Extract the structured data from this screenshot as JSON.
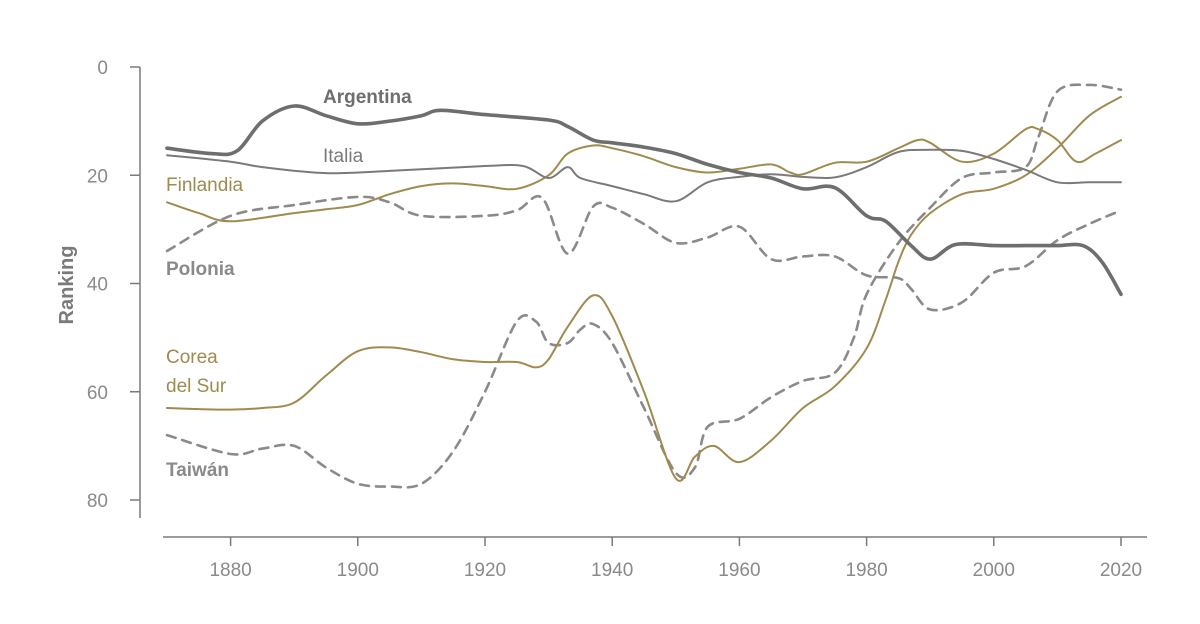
{
  "chart_data": {
    "type": "line",
    "title": "",
    "xlabel": "",
    "ylabel": "Ranking",
    "xlim": [
      1870,
      2024
    ],
    "ylim": [
      0,
      80
    ],
    "y_inverted": true,
    "x_ticks": [
      1880,
      1900,
      1920,
      1940,
      1960,
      1980,
      2000,
      2020
    ],
    "y_ticks": [
      0,
      20,
      40,
      60,
      80
    ],
    "grid": false,
    "series": [
      {
        "name": "Argentina",
        "color": "#6e6e6e",
        "style": "bold",
        "label_lines": [
          "Argentina"
        ],
        "points": [
          [
            1870,
            15
          ],
          [
            1877,
            16
          ],
          [
            1881,
            15.5
          ],
          [
            1885,
            10
          ],
          [
            1890,
            7.2
          ],
          [
            1895,
            9
          ],
          [
            1900,
            10.5
          ],
          [
            1905,
            10
          ],
          [
            1910,
            9
          ],
          [
            1913,
            8
          ],
          [
            1920,
            8.8
          ],
          [
            1930,
            9.8
          ],
          [
            1933,
            11
          ],
          [
            1937,
            13.5
          ],
          [
            1940,
            14
          ],
          [
            1945,
            14.8
          ],
          [
            1950,
            16
          ],
          [
            1955,
            18
          ],
          [
            1960,
            19.5
          ],
          [
            1965,
            20.5
          ],
          [
            1970,
            22.5
          ],
          [
            1975,
            22.3
          ],
          [
            1980,
            27.5
          ],
          [
            1983,
            28.5
          ],
          [
            1987,
            33
          ],
          [
            1990,
            35.5
          ],
          [
            1994,
            32.8
          ],
          [
            2000,
            33
          ],
          [
            2005,
            33
          ],
          [
            2010,
            33
          ],
          [
            2014,
            33
          ],
          [
            2017,
            36
          ],
          [
            2020,
            42
          ]
        ]
      },
      {
        "name": "Italia",
        "color": "#7a7a7a",
        "style": "thin",
        "label_lines": [
          "Italia"
        ],
        "points": [
          [
            1870,
            16.3
          ],
          [
            1880,
            17.5
          ],
          [
            1885,
            18.5
          ],
          [
            1895,
            19.6
          ],
          [
            1905,
            19.2
          ],
          [
            1920,
            18.3
          ],
          [
            1926,
            18.3
          ],
          [
            1930,
            20.5
          ],
          [
            1933,
            18.5
          ],
          [
            1935,
            20.5
          ],
          [
            1940,
            22
          ],
          [
            1945,
            23.5
          ],
          [
            1950,
            24.8
          ],
          [
            1955,
            21.3
          ],
          [
            1960,
            20.3
          ],
          [
            1965,
            19.8
          ],
          [
            1970,
            20.3
          ],
          [
            1975,
            20.4
          ],
          [
            1980,
            18.5
          ],
          [
            1985,
            15.7
          ],
          [
            1990,
            15.3
          ],
          [
            1995,
            15.5
          ],
          [
            2000,
            17
          ],
          [
            2005,
            19
          ],
          [
            2010,
            21.3
          ],
          [
            2015,
            21.3
          ],
          [
            2020,
            21.3
          ]
        ]
      },
      {
        "name": "Finlandia",
        "color": "#a08a4e",
        "style": "thin",
        "label_lines": [
          "Finlandia"
        ],
        "points": [
          [
            1870,
            25
          ],
          [
            1875,
            27
          ],
          [
            1880,
            28.5
          ],
          [
            1890,
            27
          ],
          [
            1895,
            26.3
          ],
          [
            1900,
            25.5
          ],
          [
            1905,
            23.5
          ],
          [
            1910,
            22
          ],
          [
            1915,
            21.5
          ],
          [
            1920,
            22
          ],
          [
            1925,
            22.5
          ],
          [
            1930,
            20
          ],
          [
            1933,
            16
          ],
          [
            1937,
            14.5
          ],
          [
            1940,
            15
          ],
          [
            1945,
            16.5
          ],
          [
            1950,
            18.5
          ],
          [
            1955,
            19.5
          ],
          [
            1960,
            18.8
          ],
          [
            1965,
            18
          ],
          [
            1968,
            19.5
          ],
          [
            1970,
            19.8
          ],
          [
            1975,
            17.7
          ],
          [
            1980,
            17.5
          ],
          [
            1985,
            15
          ],
          [
            1988,
            13.5
          ],
          [
            1990,
            14
          ],
          [
            1995,
            17.5
          ],
          [
            2000,
            16
          ],
          [
            2005,
            11.5
          ],
          [
            2007,
            11.5
          ],
          [
            2010,
            13.5
          ],
          [
            2013,
            17.5
          ],
          [
            2016,
            16
          ],
          [
            2020,
            13.5
          ]
        ]
      },
      {
        "name": "Polonia",
        "color": "#8a8a8a",
        "style": "dashed",
        "label_lines": [
          "Polonia"
        ],
        "points": [
          [
            1870,
            34
          ],
          [
            1880,
            27.5
          ],
          [
            1890,
            25.5
          ],
          [
            1900,
            24
          ],
          [
            1905,
            25
          ],
          [
            1910,
            27.5
          ],
          [
            1920,
            27.5
          ],
          [
            1925,
            26.5
          ],
          [
            1929,
            24.2
          ],
          [
            1933,
            34.5
          ],
          [
            1937,
            25.8
          ],
          [
            1940,
            26
          ],
          [
            1945,
            29
          ],
          [
            1950,
            32.5
          ],
          [
            1955,
            31.5
          ],
          [
            1960,
            29.5
          ],
          [
            1965,
            35.5
          ],
          [
            1970,
            35
          ],
          [
            1975,
            35
          ],
          [
            1980,
            38.5
          ],
          [
            1985,
            39
          ],
          [
            1987,
            41
          ],
          [
            1990,
            44.8
          ],
          [
            1995,
            43.5
          ],
          [
            2000,
            38
          ],
          [
            2005,
            36.8
          ],
          [
            2010,
            32
          ],
          [
            2015,
            29
          ],
          [
            2020,
            26.5
          ]
        ]
      },
      {
        "name": "Corea del Sur",
        "color": "#a08a4e",
        "style": "thin",
        "label_lines": [
          "Corea",
          "del Sur"
        ],
        "points": [
          [
            1870,
            63
          ],
          [
            1875,
            63.2
          ],
          [
            1880,
            63.3
          ],
          [
            1885,
            63
          ],
          [
            1890,
            62
          ],
          [
            1895,
            57
          ],
          [
            1900,
            52.5
          ],
          [
            1905,
            51.8
          ],
          [
            1910,
            52.7
          ],
          [
            1915,
            54
          ],
          [
            1920,
            54.5
          ],
          [
            1925,
            54.5
          ],
          [
            1928,
            55.5
          ],
          [
            1930,
            54
          ],
          [
            1933,
            48
          ],
          [
            1937,
            42.2
          ],
          [
            1940,
            46
          ],
          [
            1945,
            60
          ],
          [
            1950,
            76
          ],
          [
            1953,
            72
          ],
          [
            1956,
            70
          ],
          [
            1960,
            73
          ],
          [
            1965,
            69
          ],
          [
            1970,
            63
          ],
          [
            1975,
            59
          ],
          [
            1980,
            52
          ],
          [
            1983,
            43
          ],
          [
            1985,
            36
          ],
          [
            1987,
            31
          ],
          [
            1990,
            27
          ],
          [
            1995,
            23.5
          ],
          [
            2000,
            22.5
          ],
          [
            2005,
            20
          ],
          [
            2010,
            15
          ],
          [
            2015,
            9
          ],
          [
            2020,
            5.5
          ]
        ]
      },
      {
        "name": "Taiwán",
        "color": "#8a8a8a",
        "style": "dashed",
        "label_lines": [
          "Taiwán"
        ],
        "points": [
          [
            1870,
            68
          ],
          [
            1880,
            71.5
          ],
          [
            1885,
            70.5
          ],
          [
            1890,
            70
          ],
          [
            1895,
            74
          ],
          [
            1900,
            77
          ],
          [
            1905,
            77.5
          ],
          [
            1910,
            77
          ],
          [
            1915,
            71
          ],
          [
            1920,
            60
          ],
          [
            1925,
            47
          ],
          [
            1928,
            47
          ],
          [
            1930,
            51
          ],
          [
            1933,
            51
          ],
          [
            1935,
            48.5
          ],
          [
            1937,
            47.5
          ],
          [
            1940,
            51
          ],
          [
            1945,
            63
          ],
          [
            1950,
            75
          ],
          [
            1953,
            74
          ],
          [
            1955,
            66.5
          ],
          [
            1960,
            65
          ],
          [
            1965,
            61
          ],
          [
            1970,
            58
          ],
          [
            1975,
            56.5
          ],
          [
            1978,
            50
          ],
          [
            1980,
            42
          ],
          [
            1985,
            32.5
          ],
          [
            1990,
            26
          ],
          [
            1995,
            20.5
          ],
          [
            2000,
            19.5
          ],
          [
            2005,
            18.5
          ],
          [
            2007,
            13
          ],
          [
            2010,
            4.5
          ],
          [
            2015,
            3.3
          ],
          [
            2020,
            4.2
          ]
        ]
      }
    ]
  }
}
